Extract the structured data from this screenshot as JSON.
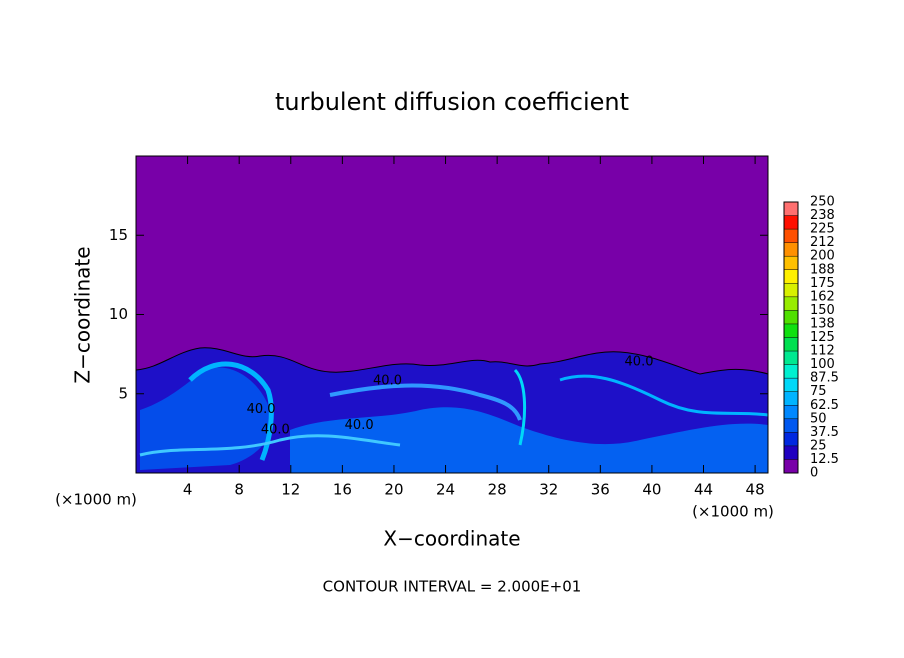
{
  "chart_data": {
    "type": "contour",
    "title": "turbulent diffusion coefficient",
    "xlabel": "X−coordinate",
    "ylabel": "Z−coordinate",
    "x_unit_left": "(×1000 m)",
    "x_unit_right": "(×1000 m)",
    "footer": "CONTOUR INTERVAL = 2.000E+01",
    "xlim": [
      0,
      49
    ],
    "xticks": [
      4,
      8,
      12,
      16,
      20,
      24,
      28,
      32,
      36,
      40,
      44,
      48
    ],
    "ylim": [
      0,
      20
    ],
    "yticks": [
      5,
      10,
      15
    ],
    "colorbar": {
      "lim": [
        0,
        250
      ],
      "ticks": [
        0,
        12.5,
        25,
        37.5,
        50,
        62.5,
        75,
        87.5,
        100,
        {
          "value": 112.5,
          "label": "112"
        },
        125,
        {
          "value": 137.5,
          "label": "138"
        },
        150,
        {
          "value": 162.5,
          "label": "162"
        },
        175,
        {
          "value": 187.5,
          "label": "188"
        },
        200,
        {
          "value": 212.5,
          "label": "212"
        },
        225,
        {
          "value": 237.5,
          "label": "238"
        },
        250
      ],
      "colors": [
        "#7800a8",
        "#2000c0",
        "#0028e0",
        "#0058f0",
        "#0088ff",
        "#00b4ff",
        "#00d8f8",
        "#00f0d0",
        "#00e890",
        "#00e050",
        "#10e010",
        "#50e000",
        "#98ec00",
        "#d8f000",
        "#fff000",
        "#ffc000",
        "#ff9000",
        "#ff5000",
        "#ff1000",
        "#ff7070"
      ]
    },
    "contour_labels": [
      {
        "text": "40.0",
        "x": 19.5,
        "y": 5.8
      },
      {
        "text": "40.0",
        "x": 39,
        "y": 7
      },
      {
        "text": "40.0",
        "x": 9.7,
        "y": 4
      },
      {
        "text": "40.0",
        "x": 10.8,
        "y": 2.7
      },
      {
        "text": "40.0",
        "x": 17.3,
        "y": 3
      }
    ]
  }
}
